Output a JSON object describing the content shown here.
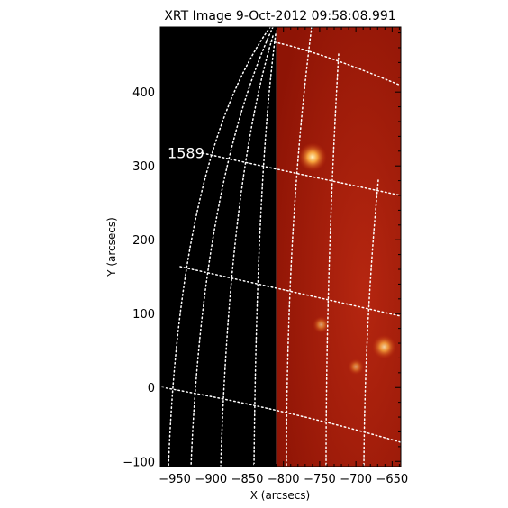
{
  "title": "XRT Image   9-Oct-2012  09:58:08.991",
  "x_axis": {
    "label": "X (arcsecs)",
    "range": [
      -970,
      -638
    ],
    "ticks": [
      -950,
      -900,
      -850,
      -800,
      -750,
      -700,
      -650
    ],
    "tick_labels": [
      "−950",
      "−900",
      "−850",
      "−800",
      "−750",
      "−700",
      "−650"
    ]
  },
  "y_axis": {
    "label": "Y (arcsecs)",
    "range": [
      -107,
      488
    ],
    "ticks": [
      -100,
      0,
      100,
      200,
      300,
      400
    ],
    "tick_labels": [
      "−100",
      "0",
      "100",
      "200",
      "300",
      "400"
    ]
  },
  "annotation": {
    "text": "1589",
    "x_value": -960,
    "y_value": 318
  },
  "image": {
    "off_disk_boundary_x": -810,
    "off_disk_color": "#000000",
    "disk_color": "#a81b08",
    "bright_points": [
      {
        "x": -760,
        "y": 312,
        "strength": 1.0
      },
      {
        "x": -661,
        "y": 55,
        "strength": 0.75
      },
      {
        "x": -748,
        "y": 85,
        "strength": 0.35
      },
      {
        "x": -700,
        "y": 28,
        "strength": 0.3
      }
    ]
  },
  "colors": {
    "grid": "#ffffff",
    "axes": "#000000",
    "background": "#ffffff"
  }
}
